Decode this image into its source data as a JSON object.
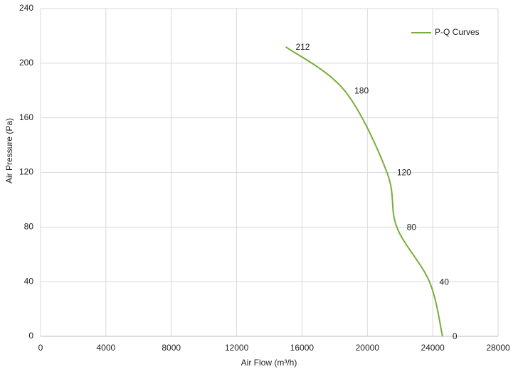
{
  "chart_data": {
    "type": "line",
    "x_label": "Air Flow  (m³/h)",
    "y_label": "Air Pressure  (Pa)",
    "x": [
      15000,
      18600,
      21200,
      21800,
      23800,
      24600
    ],
    "series": [
      {
        "name": "P-Q Curves",
        "color": "#7aad3a",
        "values": [
          212,
          180,
          120,
          80,
          40,
          0
        ]
      }
    ],
    "xlim": [
      0,
      28000
    ],
    "xticks": [
      0,
      4000,
      8000,
      12000,
      16000,
      20000,
      24000,
      28000
    ],
    "ylim": [
      0,
      240
    ],
    "yticks": [
      0,
      40,
      80,
      120,
      160,
      200,
      240
    ],
    "grid": true,
    "legend": "top-right"
  }
}
